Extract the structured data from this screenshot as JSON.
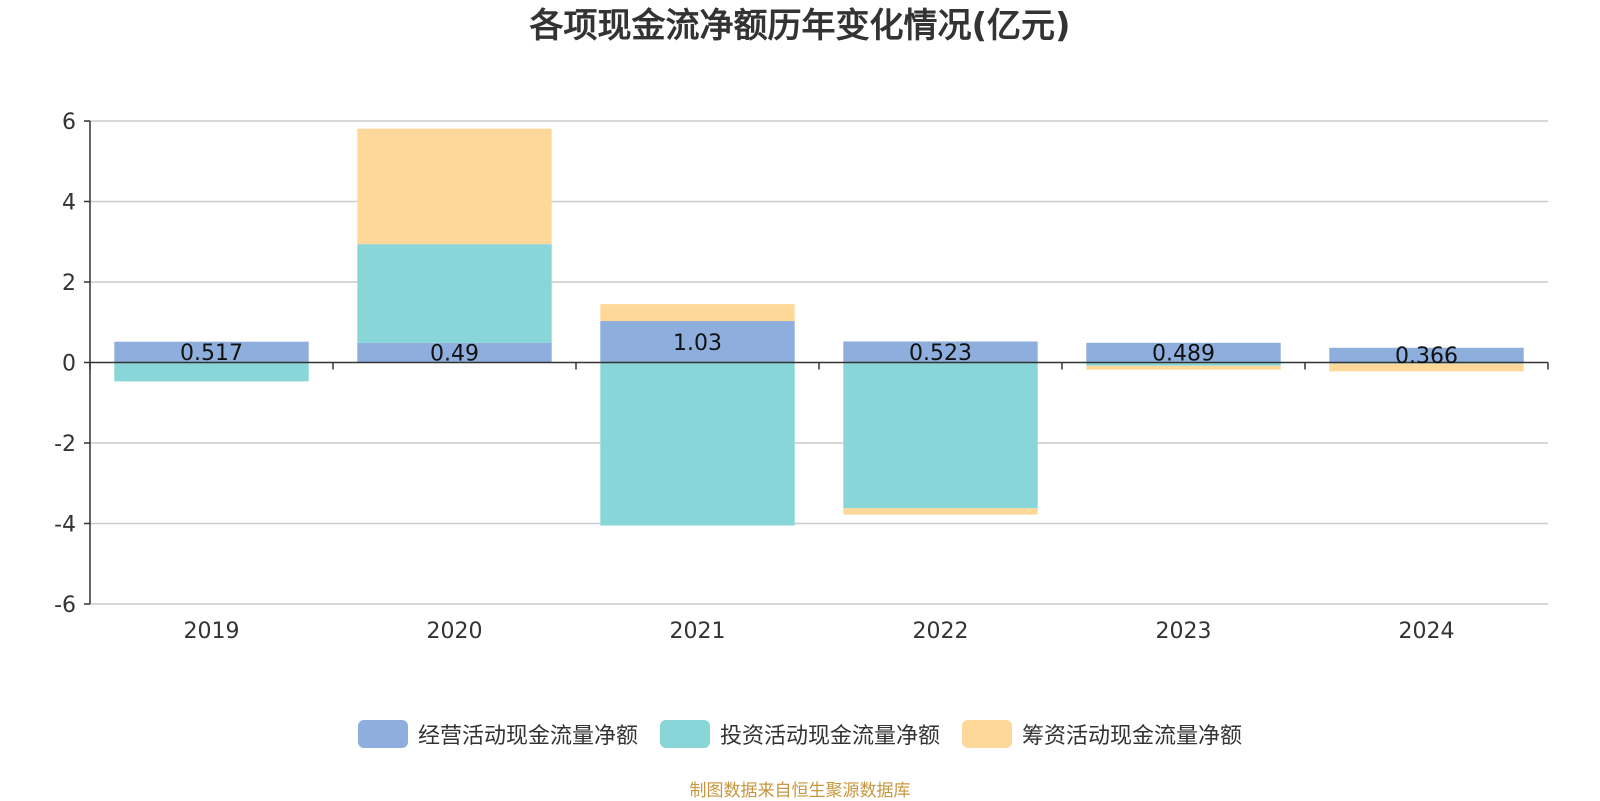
{
  "chart_data": {
    "type": "bar",
    "stacked": true,
    "title": "各项现金流净额历年变化情况(亿元)",
    "xlabel": "",
    "ylabel": "",
    "categories": [
      "2019",
      "2020",
      "2021",
      "2022",
      "2023",
      "2024"
    ],
    "ylim": [
      -6,
      6
    ],
    "yticks": [
      6,
      4,
      2,
      0,
      -2,
      -4,
      -6
    ],
    "grid": true,
    "legend_position": "bottom",
    "series": [
      {
        "name": "经营活动现金流量净额",
        "color": "#8eaedd",
        "values": [
          0.517,
          0.49,
          1.03,
          0.523,
          0.489,
          0.366
        ],
        "labels": [
          "0.517",
          "0.49",
          "1.03",
          "0.523",
          "0.489",
          "0.366"
        ]
      },
      {
        "name": "投资活动现金流量净额",
        "color": "#88d6d8",
        "values": [
          -0.47,
          2.45,
          -4.05,
          -3.62,
          -0.08,
          -0.03
        ]
      },
      {
        "name": "筹资活动现金流量净额",
        "color": "#fdd899",
        "values": [
          0.0,
          2.87,
          0.42,
          -0.16,
          -0.1,
          -0.19
        ]
      }
    ]
  },
  "footer": {
    "source": "制图数据来自恒生聚源数据库"
  }
}
